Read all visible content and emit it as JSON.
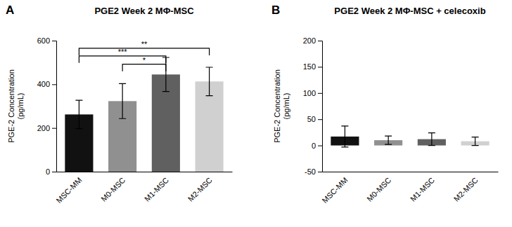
{
  "chart_data": [
    {
      "type": "bar",
      "label": "A",
      "title": "PGE2 Week 2 MΦ-MSC",
      "categories": [
        "MSC-MM",
        "M0-MSC",
        "M1-MSC",
        "M2-MSC"
      ],
      "values": [
        262,
        323,
        445,
        413
      ],
      "errors": [
        65,
        80,
        78,
        65
      ],
      "colors": [
        "#111111",
        "#909090",
        "#606060",
        "#d0d0d0"
      ],
      "ylabel": "PGE-2 Concentration\n(pg/mL)",
      "ylim": [
        0,
        600
      ],
      "yticks": [
        0,
        200,
        400,
        600
      ],
      "annotations": [
        {
          "type": "bracket",
          "x1": "MSC-MM",
          "x2": "M2-MSC",
          "y": 565,
          "label": "**"
        },
        {
          "type": "bracket",
          "x1": "MSC-MM",
          "x2": "M1-MSC",
          "y": 530,
          "label": "***"
        },
        {
          "type": "bracket",
          "x1": "M0-MSC",
          "x2": "M1-MSC",
          "y": 492,
          "label": "*"
        }
      ]
    },
    {
      "type": "bar",
      "label": "B",
      "title": "PGE2 Week 2 MΦ-MSC + celecoxib",
      "categories": [
        "MSC-MM",
        "M0-MSC",
        "M1-MSC",
        "M2-MSC"
      ],
      "values": [
        17,
        10,
        12,
        8
      ],
      "errors": [
        20,
        8,
        12,
        8
      ],
      "colors": [
        "#111111",
        "#909090",
        "#606060",
        "#d0d0d0"
      ],
      "ylabel": "PGE-2 Concentration\n(pg/mL)",
      "ylim": [
        -50,
        200
      ],
      "yticks": [
        -50,
        0,
        50,
        100,
        150,
        200
      ]
    }
  ]
}
